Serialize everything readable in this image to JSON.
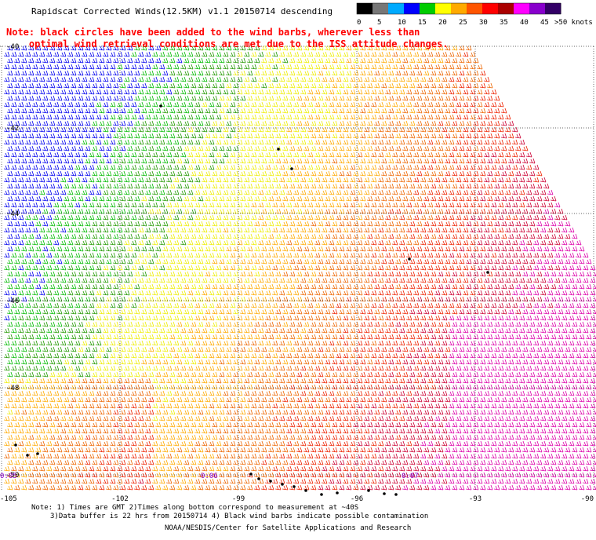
{
  "title": "Rapidscat Corrected Winds(12.5KM) v1.1 20150714 descending",
  "note": "Note: black circles have been added to the wind barbs, wherever less than\n    optimal wind retrieval conditions are met due to the ISS attitude changes.",
  "colorbar": {
    "labels": [
      "0",
      "5",
      "10",
      "15",
      "20",
      "25",
      "30",
      "35",
      "40",
      "45",
      ">50 knots"
    ],
    "colors": [
      "#000000",
      "#777777",
      "#00aaff",
      "#0000ff",
      "#00cc00",
      "#ffff00",
      "#ffaa00",
      "#ff5500",
      "#ff0000",
      "#aa0000",
      "#ff00ff",
      "#8800cc",
      "#330066"
    ]
  },
  "axes": {
    "lat_labels": [
      "-40",
      "-42",
      "-44",
      "-46",
      "-48",
      "-50"
    ],
    "lon_labels": [
      "-105",
      "-102",
      "-99",
      "-96",
      "-93",
      "-90"
    ]
  },
  "times": [
    "0:05",
    "0:06",
    "0:07"
  ],
  "time_color": "#8800cc",
  "footer": {
    "line1": "Note: 1) Times are GMT 2)Times along bottom correspond to measurement at ~40S",
    "line2": "3)Data buffer is 22 hrs from 20150714 4) Black wind barbs indicate possible contamination",
    "line3": "NOAA/NESDIS/Center for Satellite Applications and Research"
  }
}
